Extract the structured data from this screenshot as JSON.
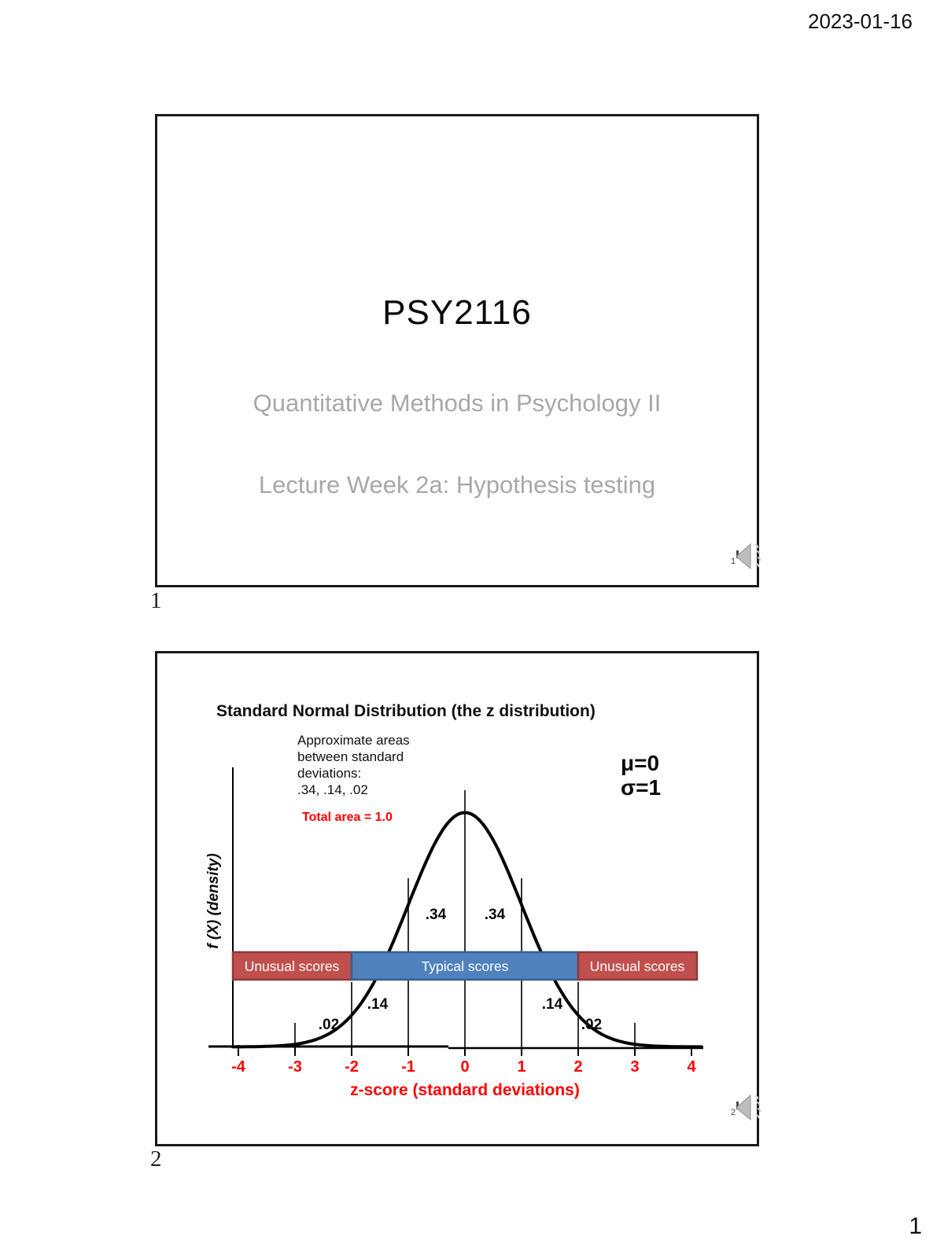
{
  "page": {
    "date": "2023-01-16",
    "page_number": "1"
  },
  "slide1": {
    "number": "1",
    "title": "PSY2116",
    "subtitle1": "Quantitative Methods in Psychology II",
    "subtitle2": "Lecture Week 2a: Hypothesis testing",
    "audio_badge": "1"
  },
  "slide2": {
    "number": "2",
    "title": "Standard Normal Distribution (the z distribution)",
    "audio_badge": "2"
  },
  "chart_data": {
    "type": "line",
    "title": "Standard Normal Distribution (the z distribution)",
    "xlabel": "z-score (standard deviations)",
    "ylabel": "f (X)  (density)",
    "curve": {
      "distribution": "standard normal density",
      "mu": 0,
      "sigma": 1
    },
    "mu_label": "μ=0",
    "sigma_label": "σ=1",
    "x_range": [
      -4,
      4
    ],
    "x_ticks": [
      -4,
      -3,
      -2,
      -1,
      0,
      1,
      2,
      3,
      4
    ],
    "x_tick_labels": [
      "-4",
      "-3",
      "-2",
      "-1",
      "0",
      "1",
      "2",
      "3",
      "4"
    ],
    "annotation_lines": [
      "Approximate areas",
      "between standard",
      "deviations:",
      ".34, .14, .02"
    ],
    "total_area_label": "Total area = 1.0",
    "total_area": 1.0,
    "area_values": {
      "0_to_1": 0.34,
      "1_to_2": 0.14,
      "2_to_3": 0.02
    },
    "area_labels": [
      ".34",
      ".34",
      ".14",
      ".14",
      ".02",
      ".02"
    ],
    "bands": [
      {
        "label": "Unusual scores",
        "z_range": [
          -4.1,
          -2
        ],
        "fill": "#c0504d",
        "border": "#8e3a38"
      },
      {
        "label": "Typical scores",
        "z_range": [
          -2,
          2
        ],
        "fill": "#4f81bd",
        "border": "#36618e"
      },
      {
        "label": "Unusual scores",
        "z_range": [
          2,
          4.1
        ],
        "fill": "#c0504d",
        "border": "#8e3a38"
      }
    ],
    "grid": false,
    "colors": {
      "curve": "#000000",
      "tick_text": "#ff0000",
      "axis_label_text": "#ff0000",
      "band_text": "#ffffff"
    }
  }
}
